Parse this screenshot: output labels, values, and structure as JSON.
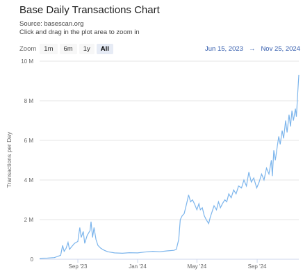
{
  "header": {
    "title": "Base Daily Transactions Chart",
    "source": "Source: basescan.org",
    "hint": "Click and drag in the plot area to zoom in"
  },
  "zoom": {
    "label": "Zoom",
    "buttons": [
      "1m",
      "6m",
      "1y",
      "All"
    ],
    "active": "All"
  },
  "range": {
    "from": "Jun 15, 2023",
    "arrow": "→",
    "to": "Nov 25, 2024"
  },
  "colors": {
    "line": "#7cb5ec",
    "grid": "#e6e6e6",
    "axis": "#ccd6eb"
  },
  "chart_data": {
    "type": "line",
    "title": "Base Daily Transactions Chart",
    "ylabel": "Transactions per Day",
    "xlabel": "",
    "ylim": [
      0,
      10000000
    ],
    "xlim": [
      "2023-06-15",
      "2024-11-25"
    ],
    "grid": true,
    "y_ticks": [
      {
        "value": 0,
        "label": "0"
      },
      {
        "value": 2000000,
        "label": "2 M"
      },
      {
        "value": 4000000,
        "label": "4 M"
      },
      {
        "value": 6000000,
        "label": "6 M"
      },
      {
        "value": 8000000,
        "label": "8 M"
      },
      {
        "value": 10000000,
        "label": "10 M"
      }
    ],
    "x_ticks": [
      {
        "date": "2023-09-01",
        "label": "Sep '23"
      },
      {
        "date": "2024-01-01",
        "label": "Jan '24"
      },
      {
        "date": "2024-05-01",
        "label": "May '24"
      },
      {
        "date": "2024-09-01",
        "label": "Sep '24"
      }
    ],
    "series": [
      {
        "name": "",
        "points": [
          [
            "2023-06-15",
            50000
          ],
          [
            "2023-07-01",
            60000
          ],
          [
            "2023-07-15",
            80000
          ],
          [
            "2023-07-28",
            200000
          ],
          [
            "2023-08-01",
            700000
          ],
          [
            "2023-08-04",
            400000
          ],
          [
            "2023-08-08",
            550000
          ],
          [
            "2023-08-12",
            850000
          ],
          [
            "2023-08-15",
            500000
          ],
          [
            "2023-08-20",
            650000
          ],
          [
            "2023-08-25",
            800000
          ],
          [
            "2023-09-01",
            900000
          ],
          [
            "2023-09-05",
            1600000
          ],
          [
            "2023-09-08",
            1100000
          ],
          [
            "2023-09-12",
            1400000
          ],
          [
            "2023-09-15",
            800000
          ],
          [
            "2023-09-20",
            1200000
          ],
          [
            "2023-09-26",
            1450000
          ],
          [
            "2023-09-28",
            1900000
          ],
          [
            "2023-10-01",
            1100000
          ],
          [
            "2023-10-04",
            1600000
          ],
          [
            "2023-10-08",
            1000000
          ],
          [
            "2023-10-12",
            700000
          ],
          [
            "2023-10-18",
            550000
          ],
          [
            "2023-10-25",
            450000
          ],
          [
            "2023-11-01",
            380000
          ],
          [
            "2023-11-15",
            320000
          ],
          [
            "2023-12-01",
            300000
          ],
          [
            "2023-12-15",
            330000
          ],
          [
            "2024-01-01",
            320000
          ],
          [
            "2024-01-15",
            360000
          ],
          [
            "2024-02-01",
            400000
          ],
          [
            "2024-02-15",
            380000
          ],
          [
            "2024-03-01",
            420000
          ],
          [
            "2024-03-15",
            450000
          ],
          [
            "2024-03-20",
            500000
          ],
          [
            "2024-03-25",
            1000000
          ],
          [
            "2024-03-28",
            2000000
          ],
          [
            "2024-04-01",
            2200000
          ],
          [
            "2024-04-05",
            2300000
          ],
          [
            "2024-04-10",
            2800000
          ],
          [
            "2024-04-14",
            3250000
          ],
          [
            "2024-04-18",
            2900000
          ],
          [
            "2024-04-22",
            3000000
          ],
          [
            "2024-04-26",
            2800000
          ],
          [
            "2024-05-01",
            2500000
          ],
          [
            "2024-05-05",
            2800000
          ],
          [
            "2024-05-08",
            2500000
          ],
          [
            "2024-05-12",
            2600000
          ],
          [
            "2024-05-16",
            2200000
          ],
          [
            "2024-05-20",
            2000000
          ],
          [
            "2024-05-25",
            1800000
          ],
          [
            "2024-05-28",
            2100000
          ],
          [
            "2024-06-01",
            2400000
          ],
          [
            "2024-06-05",
            2700000
          ],
          [
            "2024-06-10",
            2500000
          ],
          [
            "2024-06-14",
            2900000
          ],
          [
            "2024-06-18",
            2600000
          ],
          [
            "2024-06-22",
            2800000
          ],
          [
            "2024-06-27",
            3000000
          ],
          [
            "2024-07-01",
            2900000
          ],
          [
            "2024-07-05",
            3300000
          ],
          [
            "2024-07-10",
            3100000
          ],
          [
            "2024-07-15",
            3500000
          ],
          [
            "2024-07-20",
            3300000
          ],
          [
            "2024-07-25",
            3700000
          ],
          [
            "2024-07-31",
            3600000
          ],
          [
            "2024-08-05",
            4000000
          ],
          [
            "2024-08-10",
            3700000
          ],
          [
            "2024-08-15",
            4400000
          ],
          [
            "2024-08-20",
            3900000
          ],
          [
            "2024-08-25",
            4100000
          ],
          [
            "2024-08-31",
            3600000
          ],
          [
            "2024-09-05",
            3900000
          ],
          [
            "2024-09-10",
            4300000
          ],
          [
            "2024-09-15",
            4000000
          ],
          [
            "2024-09-20",
            4600000
          ],
          [
            "2024-09-25",
            4300000
          ],
          [
            "2024-09-30",
            5000000
          ],
          [
            "2024-10-02",
            4200000
          ],
          [
            "2024-10-05",
            5500000
          ],
          [
            "2024-10-08",
            5000000
          ],
          [
            "2024-10-12",
            5700000
          ],
          [
            "2024-10-15",
            6200000
          ],
          [
            "2024-10-18",
            5800000
          ],
          [
            "2024-10-22",
            6500000
          ],
          [
            "2024-10-25",
            6100000
          ],
          [
            "2024-10-29",
            7000000
          ],
          [
            "2024-11-01",
            6400000
          ],
          [
            "2024-11-05",
            7300000
          ],
          [
            "2024-11-08",
            6700000
          ],
          [
            "2024-11-11",
            7500000
          ],
          [
            "2024-11-14",
            7000000
          ],
          [
            "2024-11-18",
            7600000
          ],
          [
            "2024-11-20",
            7200000
          ],
          [
            "2024-11-23",
            8500000
          ],
          [
            "2024-11-25",
            9300000
          ]
        ]
      }
    ]
  }
}
